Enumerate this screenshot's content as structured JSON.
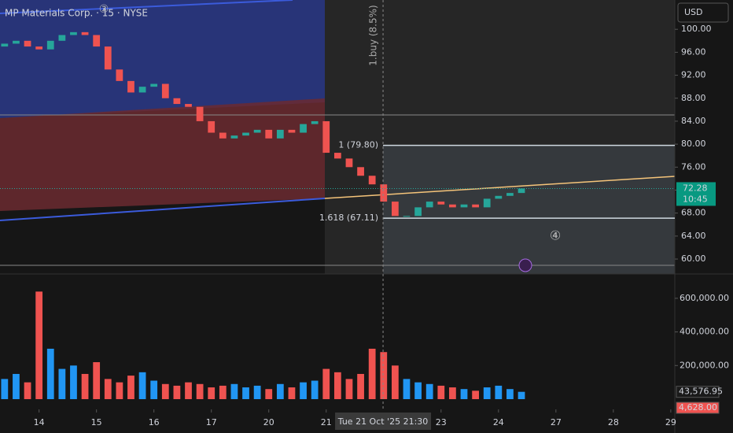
{
  "chart_data": [
    {
      "type": "candlestick",
      "title": "MP Materials Corp. · 15 · NYSE",
      "currency": "USD",
      "x": [
        -0.6,
        -0.4,
        -0.2,
        0,
        0.2,
        0.4,
        0.6,
        0.8,
        1,
        1.2,
        1.4,
        1.6,
        1.8,
        2,
        2.2,
        2.4,
        2.6,
        2.8,
        3,
        3.2,
        3.4,
        3.6,
        3.8,
        4,
        4.2,
        4.4,
        4.6,
        4.8,
        5,
        5.2,
        5.4,
        5.6,
        5.8,
        6,
        6.2,
        6.4,
        6.6,
        6.8,
        7,
        7.2,
        7.4,
        7.6,
        7.8,
        8,
        8.2,
        8.4
      ],
      "open": [
        97,
        97.5,
        98,
        97,
        96.5,
        98,
        99,
        99.5,
        99,
        97,
        93,
        91,
        89,
        90,
        90.5,
        88,
        87,
        86.5,
        84,
        82,
        81,
        81.5,
        82,
        82.5,
        81,
        82.5,
        82,
        83.5,
        84,
        78.5,
        77.5,
        76,
        74.5,
        73,
        70,
        67.5,
        67.5,
        69,
        70,
        69.5,
        69,
        69.5,
        69,
        70.5,
        71,
        71.5
      ],
      "close": [
        97.5,
        98,
        97,
        96.5,
        98,
        99,
        99.5,
        99,
        97,
        93,
        91,
        89,
        90,
        90.5,
        88,
        87,
        86.5,
        84,
        82,
        81,
        81.5,
        82,
        82.5,
        81,
        82.5,
        82,
        83.5,
        84,
        78.5,
        77.5,
        76,
        74.5,
        73,
        70,
        67.5,
        67.5,
        69,
        70,
        69.5,
        69,
        69.5,
        69,
        70.5,
        71,
        71.5,
        72.28
      ],
      "up_color": "#26a69a",
      "down_color": "#ef5350",
      "xlim": [
        -0.68,
        11.07
      ],
      "ylim": [
        57.4,
        105.1
      ],
      "yticks": [
        {
          "value": 60,
          "label": "60.00"
        },
        {
          "value": 64,
          "label": "64.00"
        },
        {
          "value": 68,
          "label": "68.00"
        },
        {
          "value": 72,
          "label": "72.00"
        },
        {
          "value": 76,
          "label": "76.00"
        },
        {
          "value": 80,
          "label": "80.00"
        },
        {
          "value": 84,
          "label": "84.00"
        },
        {
          "value": 88,
          "label": "88.00"
        },
        {
          "value": 92,
          "label": "92.00"
        },
        {
          "value": 96,
          "label": "96.00"
        },
        {
          "value": 100,
          "label": "100.00"
        }
      ],
      "xticks": [
        {
          "value": 0,
          "label": "14"
        },
        {
          "value": 1,
          "label": "15"
        },
        {
          "value": 2,
          "label": "16"
        },
        {
          "value": 3,
          "label": "17"
        },
        {
          "value": 4,
          "label": "20"
        },
        {
          "value": 5,
          "label": "21"
        },
        {
          "value": 7,
          "label": "23"
        },
        {
          "value": 8,
          "label": "24"
        },
        {
          "value": 9,
          "label": "27"
        },
        {
          "value": 10,
          "label": "28"
        },
        {
          "value": 11,
          "label": "29"
        }
      ],
      "fib_levels": [
        {
          "value": 79.8,
          "label": "1 (79.80)"
        },
        {
          "value": 67.11,
          "label": "1.618 (67.11)"
        }
      ],
      "last_price": {
        "value": 72.28,
        "label": "72.28"
      },
      "countdown": "10:45",
      "crosshair": {
        "value": 5.99,
        "label": "Tue 21 Oct '25   21:30"
      },
      "annotations": [
        "1.buy (8.5%)",
        "④",
        "③"
      ]
    },
    {
      "type": "bar",
      "colors": [
        "#2196f3",
        "#ef5350"
      ],
      "values": [
        120000,
        150000,
        100000,
        640000,
        300000,
        180000,
        200000,
        150000,
        220000,
        120000,
        100000,
        140000,
        160000,
        110000,
        90000,
        80000,
        100000,
        90000,
        70000,
        80000,
        90000,
        70000,
        80000,
        60000,
        90000,
        70000,
        100000,
        110000,
        180000,
        160000,
        120000,
        150000,
        300000,
        280000,
        200000,
        120000,
        100000,
        90000,
        80000,
        70000,
        60000,
        50000,
        70000,
        80000,
        60000,
        43576.95
      ],
      "ylim": [
        0,
        726000
      ],
      "yticks": [
        {
          "value": 200000,
          "label": "200,000.00"
        },
        {
          "value": 400000,
          "label": "400,000.00"
        },
        {
          "value": 600000,
          "label": "600,000.00"
        }
      ],
      "tags": [
        {
          "value": 43576.95,
          "label": "43,576.95"
        },
        {
          "value": 4628,
          "label": "4,628.00"
        }
      ]
    }
  ]
}
